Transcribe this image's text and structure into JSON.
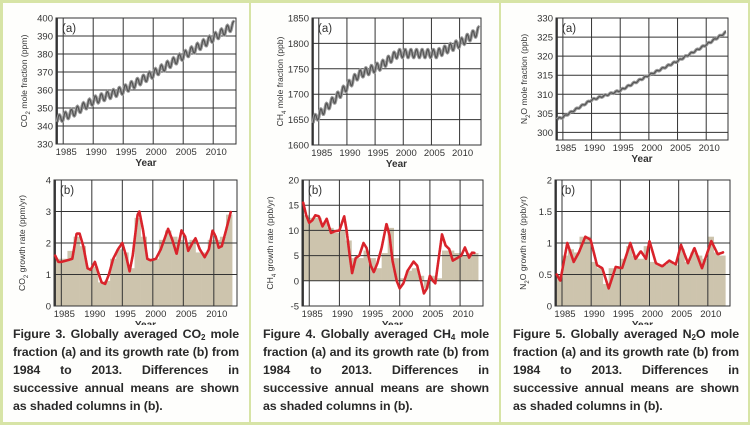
{
  "colors": {
    "border": "#d7e4a6",
    "grid": "#333333",
    "columns": "#cdc4ad",
    "curve": "#d9232b",
    "trend": "#555555"
  },
  "chart_data": [
    {
      "id": "co2",
      "type": "line",
      "caption": {
        "pre": "Figure 3. Globally averaged CO",
        "sub": "2",
        "post": " mole fraction (a) and its growth rate (b) from 1984 to 2013. Differences in successive annual means are shown as shaded columns in (b)."
      },
      "xlabel": "Year",
      "xticks": [
        1985,
        1990,
        1995,
        2000,
        2005,
        2010
      ],
      "xlim": [
        1983.8,
        2013.8
      ],
      "panel_a": {
        "tag": "(a)",
        "ylabel": {
          "pre": "CO",
          "sub": "2",
          "post": " mole fraction (ppm)"
        },
        "ylim": [
          330,
          400
        ],
        "yticks": [
          330,
          340,
          350,
          360,
          370,
          380,
          390,
          400
        ],
        "seasonal_amplitude": 2.2,
        "trend": [
          [
            1984,
            343.5
          ],
          [
            1987,
            348
          ],
          [
            1990,
            354
          ],
          [
            1992,
            356.5
          ],
          [
            1995,
            360
          ],
          [
            2000,
            369
          ],
          [
            2005,
            379
          ],
          [
            2010,
            389
          ],
          [
            2013.5,
            396
          ]
        ]
      },
      "panel_b": {
        "tag": "(b)",
        "ylabel": {
          "pre": "CO",
          "sub": "2",
          "post": " growth rate (ppm/yr)"
        },
        "ylim": [
          0,
          4
        ],
        "yticks": [
          0,
          1,
          2,
          3,
          4
        ],
        "columns": {
          "start_year": 1984,
          "values": [
            1.5,
            1.5,
            1.75,
            2.2,
            1.9,
            1.2,
            1.25,
            0.75,
            0.8,
            1.5,
            1.8,
            1.7,
            1.2,
            2.8,
            2.2,
            1.5,
            1.5,
            2.1,
            2.4,
            2.2,
            2.1,
            2.0,
            2.1,
            1.7,
            1.7,
            2.1,
            2.1,
            2.2,
            2.9
          ]
        },
        "curve": [
          [
            1984,
            1.6
          ],
          [
            1984.5,
            1.4
          ],
          [
            1985,
            1.4
          ],
          [
            1986,
            1.45
          ],
          [
            1986.8,
            1.5
          ],
          [
            1987.5,
            2.3
          ],
          [
            1988,
            2.3
          ],
          [
            1988.6,
            1.9
          ],
          [
            1989.3,
            1.2
          ],
          [
            1989.8,
            1.15
          ],
          [
            1990.5,
            1.4
          ],
          [
            1991,
            1.1
          ],
          [
            1991.6,
            0.75
          ],
          [
            1992.2,
            0.7
          ],
          [
            1992.8,
            1.0
          ],
          [
            1993.5,
            1.5
          ],
          [
            1994.3,
            1.8
          ],
          [
            1995,
            2.0
          ],
          [
            1995.6,
            1.6
          ],
          [
            1996.2,
            1.1
          ],
          [
            1996.7,
            1.6
          ],
          [
            1997.5,
            2.9
          ],
          [
            1997.8,
            3.0
          ],
          [
            1998.4,
            2.4
          ],
          [
            1999.1,
            1.5
          ],
          [
            1999.6,
            1.45
          ],
          [
            2000.5,
            1.5
          ],
          [
            2001.3,
            1.8
          ],
          [
            2002.5,
            2.45
          ],
          [
            2003.2,
            2.1
          ],
          [
            2003.9,
            1.65
          ],
          [
            2004.7,
            2.4
          ],
          [
            2005.3,
            2.2
          ],
          [
            2005.8,
            1.75
          ],
          [
            2006.5,
            2.0
          ],
          [
            2007,
            2.15
          ],
          [
            2007.7,
            1.8
          ],
          [
            2008.5,
            1.55
          ],
          [
            2009.2,
            1.8
          ],
          [
            2009.8,
            2.4
          ],
          [
            2010.3,
            2.2
          ],
          [
            2010.8,
            1.85
          ],
          [
            2011.3,
            1.9
          ],
          [
            2012,
            2.4
          ],
          [
            2012.8,
            3.0
          ]
        ]
      }
    },
    {
      "id": "ch4",
      "type": "line",
      "caption": {
        "pre": "Figure 4. Globally averaged CH",
        "sub": "4",
        "post": " mole fraction (a) and its growth rate (b) from 1984 to 2013. Differences in successive annual means are shown as shaded columns in (b)."
      },
      "xlabel": "Year",
      "xticks": [
        1985,
        1990,
        1995,
        2000,
        2005,
        2010
      ],
      "xlim": [
        1983.8,
        2013.8
      ],
      "panel_a": {
        "tag": "(a)",
        "ylabel": {
          "pre": "CH",
          "sub": "4",
          "post": " mole fraction (ppb)"
        },
        "ylim": [
          1600,
          1850
        ],
        "yticks": [
          1600,
          1650,
          1700,
          1750,
          1800,
          1850
        ],
        "seasonal_amplitude": 8,
        "trend": [
          [
            1984,
            1648
          ],
          [
            1988,
            1692
          ],
          [
            1992,
            1738
          ],
          [
            1996,
            1756
          ],
          [
            1999,
            1780
          ],
          [
            2006,
            1780
          ],
          [
            2010,
            1800
          ],
          [
            2013.5,
            1825
          ]
        ]
      },
      "panel_b": {
        "tag": "(b)",
        "ylabel": {
          "pre": "CH",
          "sub": "4",
          "post": " growth rate (ppb/yr)"
        },
        "ylim": [
          -5,
          20
        ],
        "yticks": [
          -5,
          0,
          5,
          10,
          15,
          20
        ],
        "columns": {
          "start_year": 1984,
          "values": [
            13,
            12.5,
            12.5,
            11.5,
            10.5,
            9.5,
            10,
            8,
            4.5,
            4.5,
            6,
            4.5,
            2.5,
            5.5,
            10.5,
            4.5,
            0.5,
            2,
            2.5,
            1,
            -1.5,
            1,
            0.5,
            6,
            6,
            5.5,
            5,
            5.5,
            5.5
          ]
        },
        "curve": [
          [
            1984,
            15.5
          ],
          [
            1984.5,
            13
          ],
          [
            1985,
            11.5
          ],
          [
            1985.5,
            12
          ],
          [
            1986,
            13
          ],
          [
            1986.6,
            12.8
          ],
          [
            1987.2,
            10.8
          ],
          [
            1987.9,
            12.3
          ],
          [
            1988.6,
            9.5
          ],
          [
            1989.2,
            9.8
          ],
          [
            1990,
            10
          ],
          [
            1990.8,
            12.8
          ],
          [
            1991.2,
            10
          ],
          [
            1991.7,
            5
          ],
          [
            1992.1,
            1.5
          ],
          [
            1992.7,
            4.5
          ],
          [
            1993.3,
            5
          ],
          [
            1994,
            7.5
          ],
          [
            1994.5,
            6.5
          ],
          [
            1995.2,
            3
          ],
          [
            1995.7,
            1.7
          ],
          [
            1996.3,
            3.5
          ],
          [
            1997,
            6.5
          ],
          [
            1997.8,
            11.3
          ],
          [
            1998.3,
            9
          ],
          [
            1998.8,
            4
          ],
          [
            1999.5,
            0
          ],
          [
            2000,
            -1.5
          ],
          [
            2000.6,
            -0.5
          ],
          [
            2001.3,
            2
          ],
          [
            2002.3,
            3.8
          ],
          [
            2002.9,
            3
          ],
          [
            2003.5,
            0
          ],
          [
            2004,
            -2.5
          ],
          [
            2004.5,
            -1.5
          ],
          [
            2005,
            1
          ],
          [
            2005.5,
            0
          ],
          [
            2005.9,
            -0.5
          ],
          [
            2006.4,
            4
          ],
          [
            2007,
            9.2
          ],
          [
            2007.6,
            7
          ],
          [
            2008.2,
            6.3
          ],
          [
            2008.8,
            4
          ],
          [
            2009.5,
            4.5
          ],
          [
            2010.2,
            5
          ],
          [
            2010.8,
            6.6
          ],
          [
            2011.5,
            4.6
          ],
          [
            2012,
            5.6
          ],
          [
            2012.5,
            5.5
          ]
        ]
      }
    },
    {
      "id": "n2o",
      "type": "line",
      "caption": {
        "pre": "Figure 5. Globally averaged N",
        "sub": "2",
        "post": "O mole fraction (a) and its growth rate (b) from 1984 to 2013. Differences in successive annual means are shown as shaded columns in (b)."
      },
      "xlabel": "Year",
      "xticks": [
        1985,
        1990,
        1995,
        2000,
        2005,
        2010
      ],
      "xlim": [
        1983.8,
        2013.8
      ],
      "panel_a": {
        "tag": "(a)",
        "ylabel": {
          "pre": "N",
          "sub": "2",
          "post": "O mole fraction (ppb)"
        },
        "ylim": [
          298,
          330
        ],
        "yticks": [
          300,
          305,
          310,
          315,
          320,
          325,
          330
        ],
        "seasonal_amplitude": 0.2,
        "trend": [
          [
            1984,
            303.5
          ],
          [
            1985,
            304
          ],
          [
            1990,
            308.5
          ],
          [
            1995,
            311
          ],
          [
            2000,
            315
          ],
          [
            2005,
            318.7
          ],
          [
            2010,
            323
          ],
          [
            2013.5,
            326.3
          ]
        ]
      },
      "panel_b": {
        "tag": "(b)",
        "ylabel": {
          "pre": "N",
          "sub": "2",
          "post": "O growth rate (ppb/yr)"
        },
        "ylim": [
          0,
          2
        ],
        "yticks": [
          0,
          0.5,
          1,
          1.5,
          2
        ],
        "columns": {
          "start_year": 1984,
          "values": [
            0.5,
            0.8,
            0.9,
            0.85,
            1.1,
            1.1,
            0.7,
            0.6,
            0.35,
            0.6,
            0.6,
            0.75,
            0.95,
            0.8,
            0.75,
            0.95,
            0.7,
            0.65,
            0.65,
            0.7,
            0.65,
            0.9,
            0.7,
            0.85,
            0.8,
            0.75,
            1.1,
            0.85,
            0.8
          ]
        },
        "curve": [
          [
            1984.1,
            0.5
          ],
          [
            1984.7,
            0.4
          ],
          [
            1985.9,
            1.0
          ],
          [
            1987,
            0.7
          ],
          [
            1987.9,
            0.85
          ],
          [
            1989,
            1.1
          ],
          [
            1989.9,
            1.05
          ],
          [
            1991,
            0.65
          ],
          [
            1991.9,
            0.6
          ],
          [
            1993,
            0.28
          ],
          [
            1994.2,
            0.62
          ],
          [
            1995.3,
            0.6
          ],
          [
            1996.7,
            1.0
          ],
          [
            1997.6,
            0.75
          ],
          [
            1998.5,
            0.87
          ],
          [
            1999.4,
            0.75
          ],
          [
            2000,
            1.03
          ],
          [
            2001.1,
            0.68
          ],
          [
            2002.2,
            0.63
          ],
          [
            2003.4,
            0.72
          ],
          [
            2004.5,
            0.66
          ],
          [
            2005.4,
            0.97
          ],
          [
            2006.6,
            0.68
          ],
          [
            2007.7,
            0.92
          ],
          [
            2009,
            0.6
          ],
          [
            2010.6,
            1.03
          ],
          [
            2011.7,
            0.82
          ],
          [
            2012.6,
            0.85
          ]
        ]
      }
    }
  ]
}
